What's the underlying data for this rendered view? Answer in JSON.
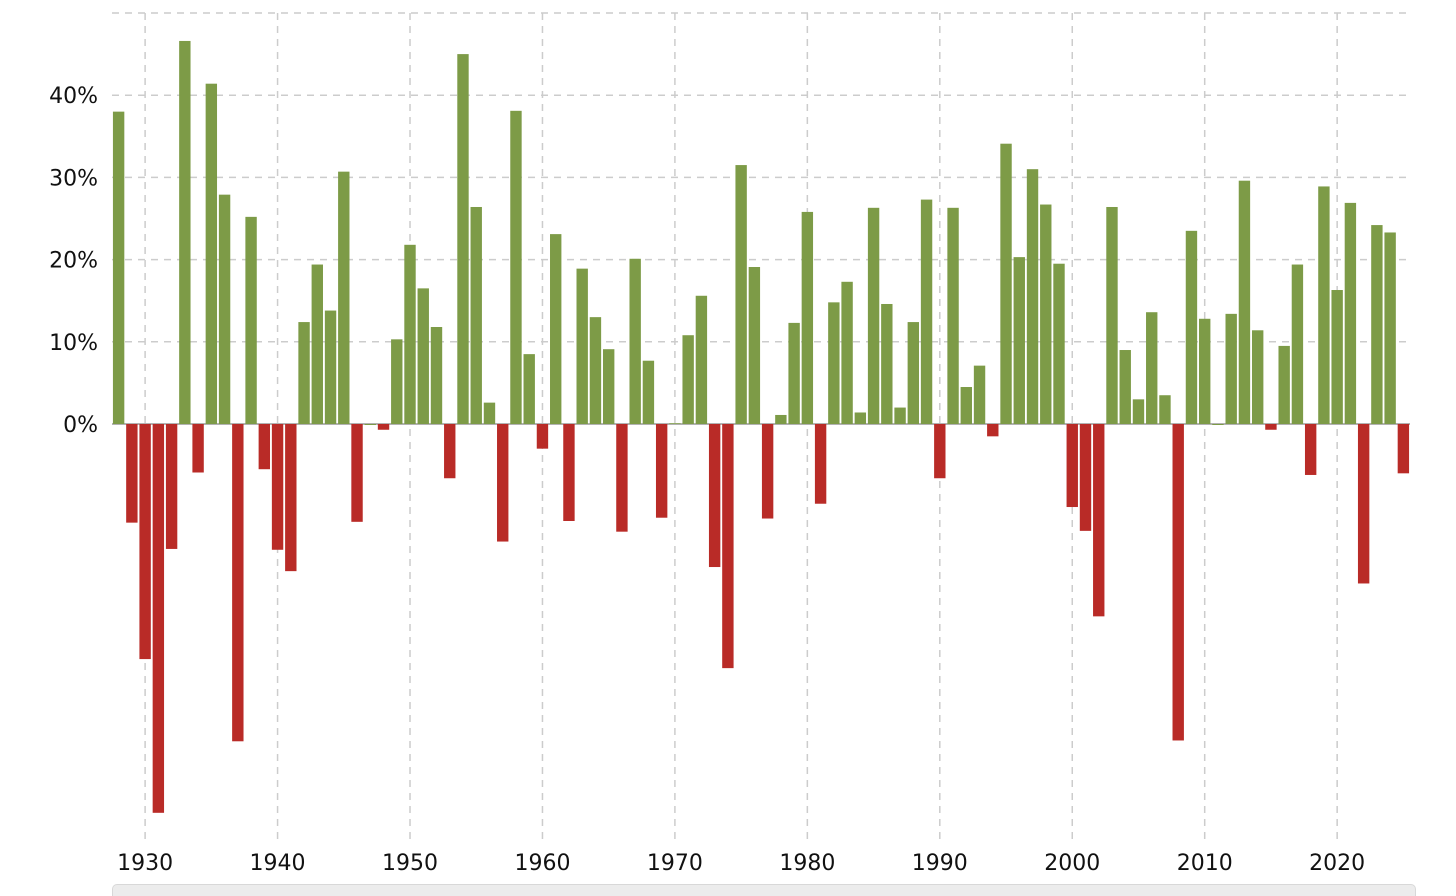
{
  "chart_data": {
    "type": "bar",
    "x": [
      1928,
      1929,
      1930,
      1931,
      1932,
      1933,
      1934,
      1935,
      1936,
      1937,
      1938,
      1939,
      1940,
      1941,
      1942,
      1943,
      1944,
      1945,
      1946,
      1947,
      1948,
      1949,
      1950,
      1951,
      1952,
      1953,
      1954,
      1955,
      1956,
      1957,
      1958,
      1959,
      1960,
      1961,
      1962,
      1963,
      1964,
      1965,
      1966,
      1967,
      1968,
      1969,
      1970,
      1971,
      1972,
      1973,
      1974,
      1975,
      1976,
      1977,
      1978,
      1979,
      1980,
      1981,
      1982,
      1983,
      1984,
      1985,
      1986,
      1987,
      1988,
      1989,
      1990,
      1991,
      1992,
      1993,
      1994,
      1995,
      1996,
      1997,
      1998,
      1999,
      2000,
      2001,
      2002,
      2003,
      2004,
      2005,
      2006,
      2007,
      2008,
      2009,
      2010,
      2011,
      2012,
      2013,
      2014,
      2015,
      2016,
      2017,
      2018,
      2019,
      2020,
      2021,
      2022,
      2023,
      2024,
      2025
    ],
    "values": [
      38.0,
      -12.0,
      -28.6,
      -47.3,
      -15.2,
      46.6,
      -5.9,
      41.4,
      27.9,
      -38.6,
      25.2,
      -5.5,
      -15.3,
      -17.9,
      12.4,
      19.4,
      13.8,
      30.7,
      -11.9,
      0.0,
      -0.7,
      10.3,
      21.8,
      16.5,
      11.8,
      -6.6,
      45.0,
      26.4,
      2.6,
      -14.3,
      38.1,
      8.5,
      -3.0,
      23.1,
      -11.8,
      18.9,
      13.0,
      9.1,
      -13.1,
      20.1,
      7.7,
      -11.4,
      0.1,
      10.8,
      15.6,
      -17.4,
      -29.7,
      31.5,
      19.1,
      -11.5,
      1.1,
      12.3,
      25.8,
      -9.7,
      14.8,
      17.3,
      1.4,
      26.3,
      14.6,
      2.0,
      12.4,
      27.3,
      -6.6,
      26.3,
      4.5,
      7.1,
      -1.5,
      34.1,
      20.3,
      31.0,
      26.7,
      19.5,
      -10.1,
      -13.0,
      -23.4,
      26.4,
      9.0,
      3.0,
      13.6,
      3.5,
      -38.5,
      23.5,
      12.8,
      0.0,
      13.4,
      29.6,
      11.4,
      -0.7,
      9.5,
      19.4,
      -6.2,
      28.9,
      16.3,
      26.9,
      -19.4,
      24.2,
      23.3,
      -6.0
    ],
    "title": "",
    "xlabel": "",
    "ylabel": "",
    "x_ticks": [
      1930,
      1940,
      1950,
      1960,
      1970,
      1980,
      1990,
      2000,
      2010,
      2020
    ],
    "x_tick_labels": [
      "1930",
      "1940",
      "1950",
      "1960",
      "1970",
      "1980",
      "1990",
      "2000",
      "2010",
      "2020"
    ],
    "y_ticks": [
      0,
      10,
      20,
      30,
      40
    ],
    "y_tick_labels": [
      "0%",
      "10%",
      "20%",
      "30%",
      "40%"
    ],
    "ylim": [
      -49,
      52
    ],
    "xlim": [
      1927.5,
      2025.5
    ],
    "grid": true,
    "legend": "none",
    "colors": {
      "positive": "#7d9b47",
      "negative": "#b92b27",
      "grid": "#cccccc",
      "text": "#111111"
    }
  }
}
